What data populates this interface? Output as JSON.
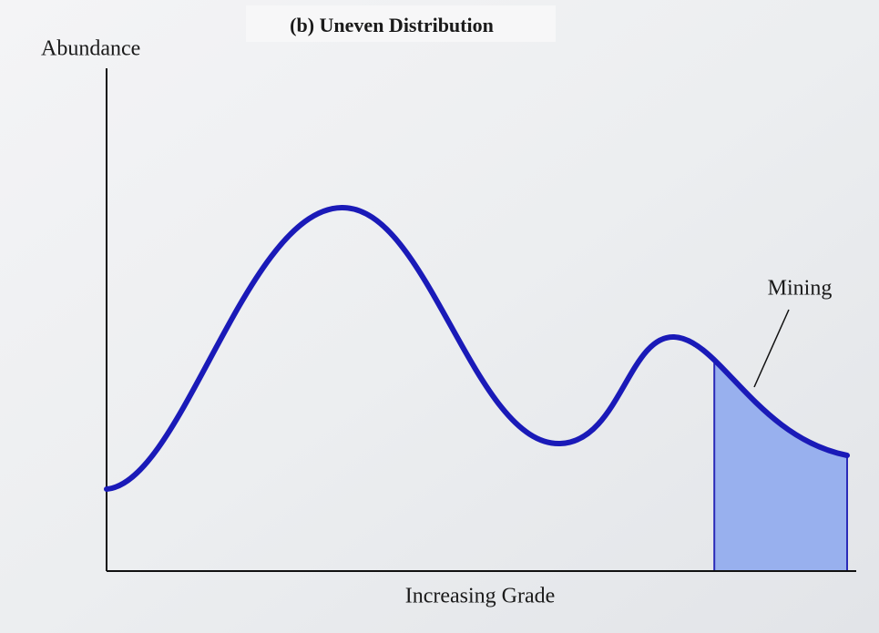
{
  "title": "(b) Uneven Distribution",
  "y_axis_label": "Abundance",
  "x_axis_label": "Increasing Grade",
  "annotation": "Mining"
}
